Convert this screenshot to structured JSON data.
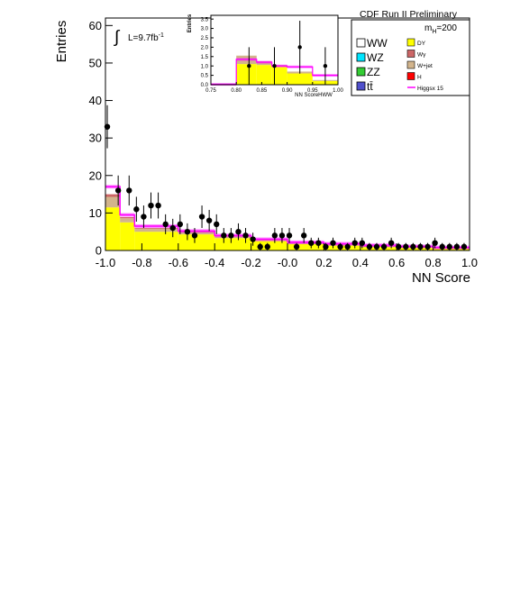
{
  "chart_data": [
    {
      "panel": "main",
      "type": "bar",
      "title": "CDF Run II Preliminary",
      "xlabel": "NN Score",
      "ylabel": "Entries",
      "xlim": [
        -1.0,
        1.0
      ],
      "ylim": [
        0,
        62
      ],
      "x_ticks": [
        "-1.0",
        "-0.8",
        "-0.6",
        "-0.4",
        "-0.2",
        "-0.0",
        "0.2",
        "0.4",
        "0.6",
        "0.8",
        "1.0"
      ],
      "y_ticks": [
        "0",
        "10",
        "20",
        "30",
        "40",
        "50",
        "60"
      ],
      "luminosity": {
        "prefix": "L=9.7fb",
        "exponent": "-1"
      },
      "mass_label": {
        "main": "m",
        "sub": "H",
        "rest": "=200"
      },
      "bin_edges": [
        -1.0,
        -0.92,
        -0.84,
        -0.6,
        -0.4,
        -0.2,
        0.0,
        0.2,
        0.4,
        0.6,
        0.8,
        1.0
      ],
      "series": [
        {
          "name": "DY",
          "color": "#ffff00",
          "values": [
            11.5,
            7.5,
            5.0,
            4.3,
            3.3,
            2.5,
            1.7,
            1.3,
            0.9,
            0.7,
            0.5
          ]
        },
        {
          "name": "W+jet",
          "color": "#d2b48c",
          "values": [
            2.8,
            1.1,
            0.8,
            0.6,
            0.5,
            0.4,
            0.3,
            0.3,
            0.2,
            0.2,
            0.1
          ]
        },
        {
          "name": "Wγ",
          "color": "#cc6666",
          "values": [
            0.7,
            0.3,
            0.2,
            0.2,
            0.1,
            0.1,
            0.1,
            0.1,
            0.1,
            0.1,
            0.1
          ]
        }
      ],
      "signal": {
        "name": "Higgsx 15",
        "color": "#ff00ff",
        "values": [
          17.0,
          9.5,
          6.5,
          5.2,
          4.0,
          3.0,
          2.2,
          1.8,
          1.4,
          1.1,
          0.8
        ]
      },
      "data_points": {
        "x": [
          -0.99,
          -0.93,
          -0.87,
          -0.83,
          -0.79,
          -0.75,
          -0.71,
          -0.67,
          -0.63,
          -0.59,
          -0.55,
          -0.51,
          -0.47,
          -0.43,
          -0.39,
          -0.35,
          -0.31,
          -0.27,
          -0.23,
          -0.19,
          -0.15,
          -0.11,
          -0.07,
          -0.03,
          0.01,
          0.05,
          0.09,
          0.13,
          0.17,
          0.21,
          0.25,
          0.29,
          0.33,
          0.37,
          0.41,
          0.45,
          0.49,
          0.53,
          0.57,
          0.61,
          0.65,
          0.69,
          0.73,
          0.77,
          0.81,
          0.85,
          0.89,
          0.93,
          0.97
        ],
        "y": [
          33,
          16,
          16,
          11,
          9,
          12,
          12,
          7,
          6,
          7,
          5,
          4,
          9,
          8,
          7,
          4,
          4,
          5,
          4,
          3,
          1,
          1,
          4,
          4,
          4,
          1,
          4,
          2,
          2,
          1,
          2,
          1,
          1,
          2,
          2,
          1,
          1,
          1,
          2,
          1,
          1,
          1,
          1,
          1,
          2,
          1,
          1,
          1,
          1
        ]
      }
    },
    {
      "panel": "inset",
      "type": "bar",
      "xlabel": "NN ScoreHWW",
      "ylabel": "Entries",
      "xlim": [
        0.75,
        1.0
      ],
      "ylim": [
        0,
        3.7
      ],
      "x_ticks": [
        "0.75",
        "0.80",
        "0.85",
        "0.90",
        "0.95",
        "1.00"
      ],
      "y_ticks": [
        "0.0",
        "0.5",
        "1.0",
        "1.5",
        "2.0",
        "2.5",
        "3.0",
        "3.5"
      ],
      "bin_edges": [
        0.75,
        0.8,
        0.84,
        0.87,
        0.9,
        0.95,
        1.0
      ],
      "series": [
        {
          "name": "DY",
          "color": "#ffff00",
          "values": [
            0.02,
            1.1,
            1.05,
            0.95,
            0.6,
            0.2
          ]
        },
        {
          "name": "W+jet",
          "color": "#d2b48c",
          "values": [
            0.01,
            0.45,
            0.2,
            0.1,
            0.1,
            0.05
          ]
        }
      ],
      "signal": {
        "name": "Higgsx 15",
        "color": "#ff00ff",
        "values": [
          0.02,
          1.35,
          1.2,
          1.0,
          0.95,
          0.5
        ]
      },
      "data_points": {
        "x": [
          0.825,
          0.875,
          0.925,
          0.975
        ],
        "y": [
          1.0,
          1.0,
          2.0,
          1.0
        ],
        "err": [
          1.0,
          1.0,
          1.41,
          1.0
        ]
      }
    }
  ],
  "legend": {
    "left": [
      {
        "label": "WW",
        "color": "#ffffff"
      },
      {
        "label": "WZ",
        "color": "#00e5ff"
      },
      {
        "label": "ZZ",
        "color": "#33cc33"
      },
      {
        "label": "tt̄",
        "color": "#5050cc"
      }
    ],
    "right": [
      {
        "label": "DY",
        "color": "#ffff00"
      },
      {
        "label": "Wγ",
        "color": "#cc6666"
      },
      {
        "label": "W+jet",
        "color": "#d2b48c"
      },
      {
        "label": "H",
        "color": "#ff0000"
      },
      {
        "label": "Higgsx 15",
        "color": "#ff00ff"
      }
    ]
  }
}
